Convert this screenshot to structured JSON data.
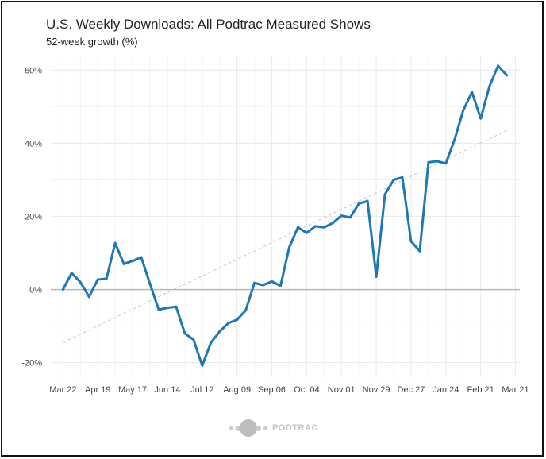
{
  "title": "U.S. Weekly Downloads: All Podtrac Measured Shows",
  "subtitle": "52-week growth (%)",
  "brand": {
    "text": "PODTRAC",
    "icon": "podtrac-logo-dots"
  },
  "colors": {
    "line": "#1f77b4",
    "trend": "#c8c8c8",
    "zero": "#b4b4b4",
    "grid": "#ebebeb"
  },
  "chart_data": {
    "type": "line",
    "title": "U.S. Weekly Downloads: All Podtrac Measured Shows",
    "subtitle": "52-week growth (%)",
    "xlabel": "",
    "ylabel": "",
    "x_tick_labels": [
      "Mar 22",
      "Apr 19",
      "May 17",
      "Jun 14",
      "Jul 12",
      "Aug 09",
      "Sep 06",
      "Oct 04",
      "Nov 01",
      "Nov 29",
      "Dec 27",
      "Jan 24",
      "Feb 21",
      "Mar 21"
    ],
    "y_tick_labels": [
      "-20%",
      "0%",
      "20%",
      "40%",
      "60%"
    ],
    "y_ticks": [
      -20,
      0,
      20,
      40,
      60
    ],
    "ylim": [
      -24,
      64
    ],
    "xlim": [
      -1.4,
      52.5
    ],
    "grid": true,
    "x": [
      0,
      1,
      2,
      3,
      4,
      5,
      6,
      7,
      8,
      9,
      10,
      11,
      12,
      13,
      14,
      15,
      16,
      17,
      18,
      19,
      20,
      21,
      22,
      23,
      24,
      25,
      26,
      27,
      28,
      29,
      30,
      31,
      32,
      33,
      34,
      35,
      36,
      37,
      38,
      39,
      40,
      41,
      42,
      43,
      44,
      45,
      46,
      47,
      48,
      49,
      50,
      51
    ],
    "series": [
      {
        "values": [
          0,
          4.5,
          2,
          -2,
          2.7,
          3,
          12.7,
          7,
          7.8,
          8.8,
          1.5,
          -5.5,
          -5,
          -4.7,
          -12,
          -13.7,
          -20.8,
          -14.5,
          -11.5,
          -9.2,
          -8.3,
          -5.7,
          1.8,
          1.2,
          2.2,
          1,
          11.5,
          17,
          15.5,
          17.3,
          17,
          18.2,
          20.2,
          19.7,
          23.5,
          24.2,
          3.5,
          26,
          30,
          30.7,
          13.2,
          10.5,
          34.8,
          35.1,
          34.5,
          41,
          49,
          54,
          46.8,
          55.5,
          61.2,
          58.6
        ]
      }
    ],
    "trendline": {
      "style": "dashed",
      "x": [
        0,
        51
      ],
      "y": [
        -14.5,
        43.5
      ]
    },
    "zero_line": 0
  }
}
